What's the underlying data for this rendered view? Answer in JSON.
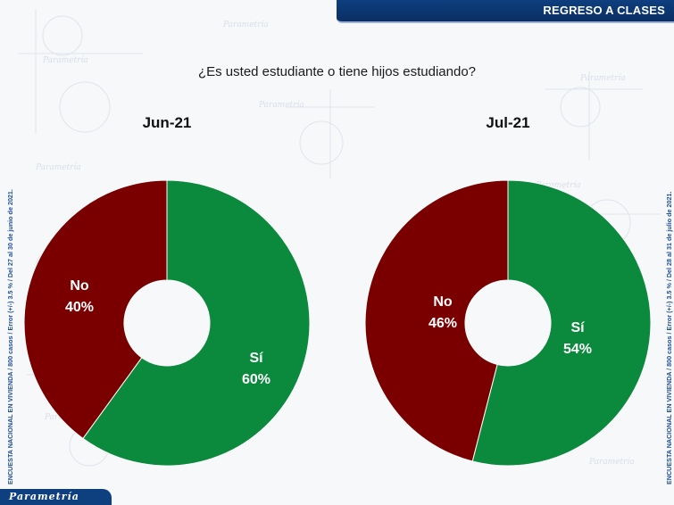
{
  "header": {
    "title": "REGRESO A CLASES"
  },
  "question": "¿Es usted estudiante o tiene hijos estudiando?",
  "side_notes": {
    "left": "ENCUESTA NACIONAL EN VIVIENDA / 800 casos / Error (+/-) 3.5 % / Del 27 al 30 de junio de 2021.",
    "right": "ENCUESTA NACIONAL EN VIVIENDA / 800 casos / Error (+/-) 3.5 % / Del 28 al 31 de julio de 2021."
  },
  "brand": "Parametría",
  "colors": {
    "si": "#0b8a3d",
    "no": "#7a0000",
    "brand": "#0e3f7f"
  },
  "chart_data": [
    {
      "type": "pie",
      "title": "Jun-21",
      "categories": [
        "Sí",
        "No"
      ],
      "values": [
        60,
        40
      ],
      "labels": [
        "60%",
        "40%"
      ]
    },
    {
      "type": "pie",
      "title": "Jul-21",
      "categories": [
        "Sí",
        "No"
      ],
      "values": [
        54,
        46
      ],
      "labels": [
        "54%",
        "46%"
      ]
    }
  ]
}
